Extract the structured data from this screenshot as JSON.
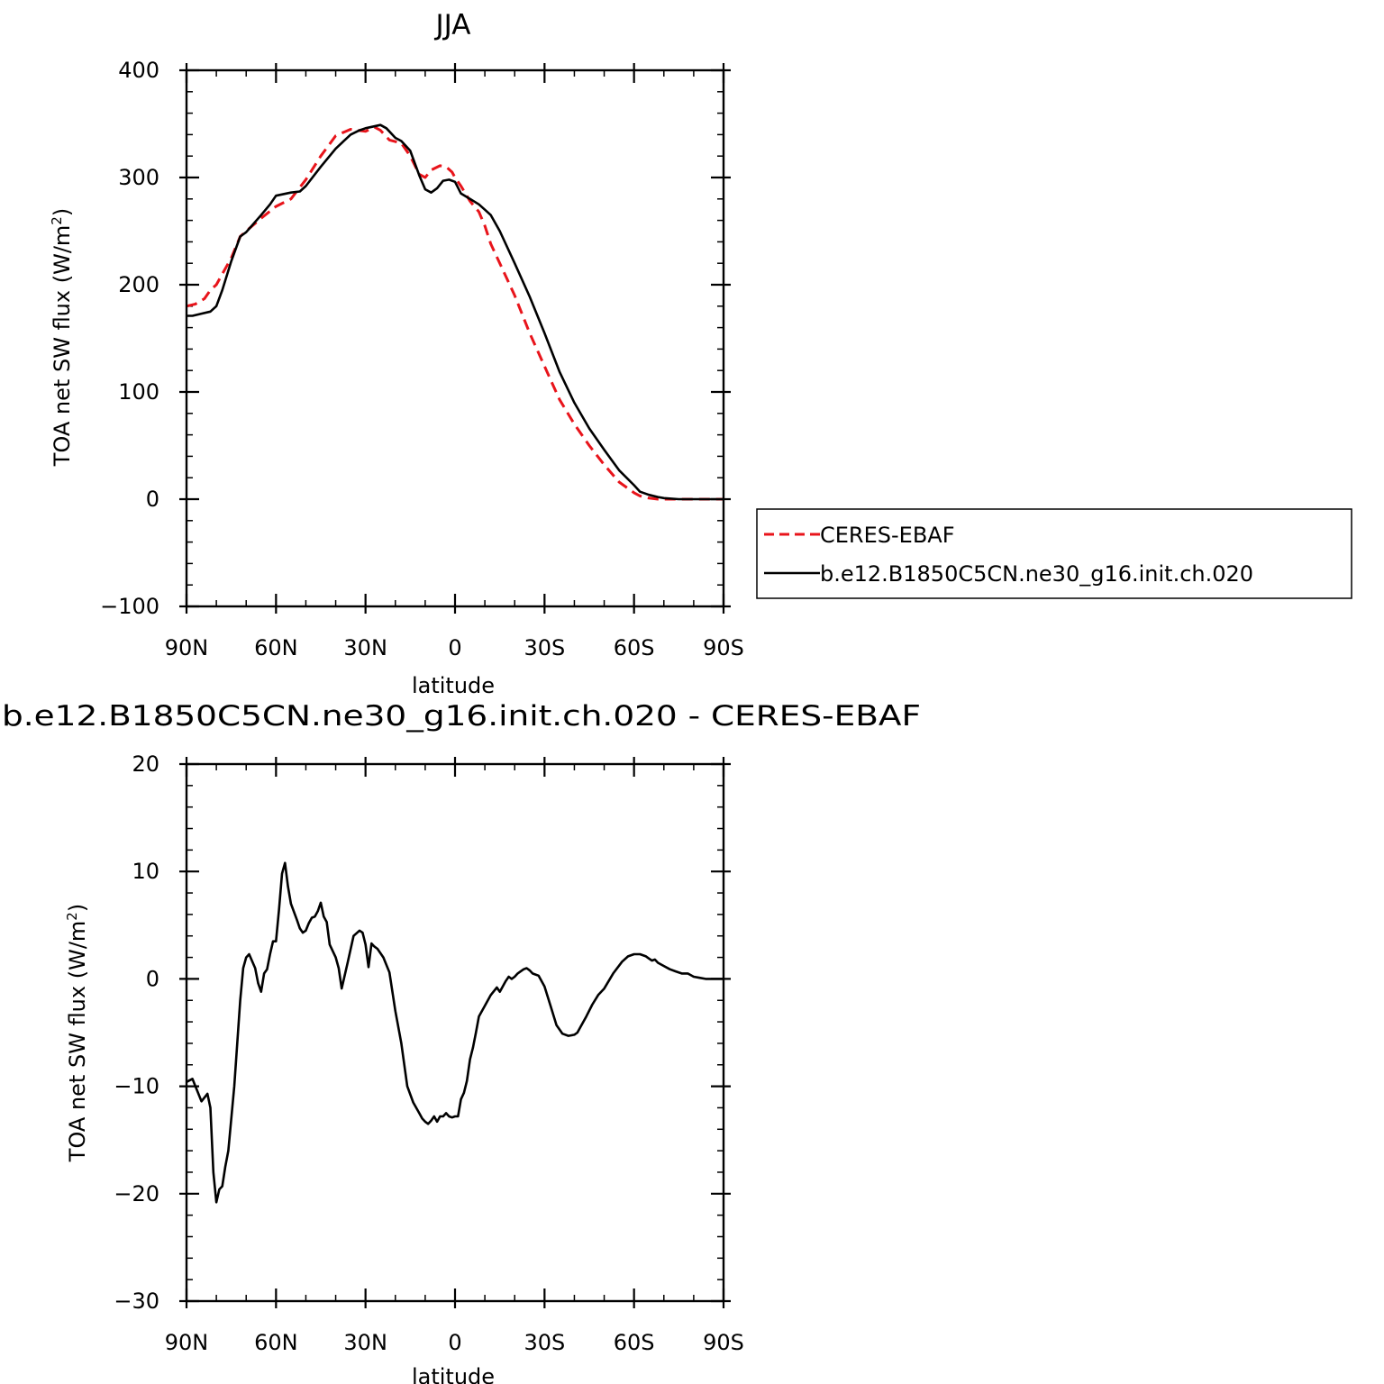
{
  "chart_data": [
    {
      "type": "line",
      "title": "JJA",
      "xlabel": "latitude",
      "ylabel": "TOA net SW flux (W/m",
      "ylabel_sup": "2",
      "ylabel_close": ")",
      "xlim": [
        90,
        -90
      ],
      "ylim": [
        -100,
        400
      ],
      "xticks": [
        {
          "value": 90,
          "label": "90N"
        },
        {
          "value": 60,
          "label": "60N"
        },
        {
          "value": 30,
          "label": "30N"
        },
        {
          "value": 0,
          "label": "0"
        },
        {
          "value": -30,
          "label": "30S"
        },
        {
          "value": -60,
          "label": "60S"
        },
        {
          "value": -90,
          "label": "90S"
        }
      ],
      "yticks": [
        -100,
        0,
        100,
        200,
        300,
        400
      ],
      "grid": false,
      "legend": "right",
      "series": [
        {
          "name": "CERES-EBAF",
          "color": "#e8141b",
          "dash": "dashed",
          "x": [
            90,
            87,
            84,
            82,
            80,
            78,
            75,
            72,
            70,
            65,
            60,
            55,
            50,
            45,
            40,
            35,
            30,
            27,
            25,
            22,
            18,
            15,
            12,
            10,
            8,
            5,
            3,
            1,
            0,
            -2,
            -5,
            -8,
            -10,
            -12,
            -15,
            -20,
            -25,
            -30,
            -35,
            -40,
            -45,
            -50,
            -55,
            -60,
            -62,
            -65,
            -68,
            -70,
            -75,
            -80,
            -85,
            -90
          ],
          "y": [
            180,
            182,
            187,
            195,
            200,
            210,
            225,
            245,
            250,
            262,
            273,
            280,
            298,
            320,
            339,
            345,
            343,
            347,
            344,
            335,
            332,
            320,
            303,
            300,
            307,
            311,
            310,
            305,
            300,
            292,
            278,
            268,
            255,
            238,
            220,
            190,
            155,
            124,
            93,
            70,
            50,
            32,
            16,
            6,
            3,
            1,
            0,
            0,
            0,
            0,
            0,
            0
          ]
        },
        {
          "name": "b.e12.B1850C5CN.ne30_g16.init.ch.020",
          "color": "#000000",
          "dash": "solid",
          "x": [
            90,
            88,
            85,
            82,
            80,
            78,
            75,
            72,
            70,
            65,
            62,
            60,
            55,
            52,
            50,
            45,
            40,
            35,
            32,
            30,
            25,
            23,
            20,
            18,
            15,
            12,
            10,
            8,
            6,
            4,
            2,
            0,
            -2,
            -5,
            -8,
            -10,
            -12,
            -15,
            -20,
            -25,
            -30,
            -35,
            -40,
            -45,
            -50,
            -55,
            -60,
            -62,
            -65,
            -68,
            -70,
            -75,
            -80,
            -85,
            -90
          ],
          "y": [
            171,
            171,
            173,
            175,
            180,
            195,
            222,
            245,
            249,
            265,
            275,
            283,
            286,
            287,
            292,
            310,
            327,
            340,
            344,
            346,
            349,
            346,
            337,
            334,
            325,
            302,
            289,
            286,
            290,
            297,
            298,
            296,
            285,
            280,
            275,
            270,
            265,
            250,
            220,
            189,
            155,
            119,
            90,
            66,
            46,
            27,
            13,
            7,
            4,
            2,
            1,
            0,
            0,
            0,
            0
          ]
        }
      ]
    },
    {
      "type": "line",
      "title": "b.e12.B1850C5CN.ne30_g16.init.ch.020 - CERES-EBAF",
      "xlabel": "latitude",
      "ylabel": "TOA net SW flux (W/m",
      "ylabel_sup": "2",
      "ylabel_close": ")",
      "xlim": [
        90,
        -90
      ],
      "ylim": [
        -30,
        20
      ],
      "xticks": [
        {
          "value": 90,
          "label": "90N"
        },
        {
          "value": 60,
          "label": "60N"
        },
        {
          "value": 30,
          "label": "30N"
        },
        {
          "value": 0,
          "label": "0"
        },
        {
          "value": -30,
          "label": "30S"
        },
        {
          "value": -60,
          "label": "60S"
        },
        {
          "value": -90,
          "label": "90S"
        }
      ],
      "yticks": [
        -30,
        -20,
        -10,
        0,
        10,
        20
      ],
      "grid": false,
      "series": [
        {
          "color": "#000000",
          "dash": "solid",
          "x": [
            90,
            88,
            87,
            85,
            83,
            82,
            81,
            80,
            79,
            78,
            77,
            76,
            74,
            72,
            71,
            70,
            69,
            67,
            66,
            65,
            64,
            63,
            62,
            61,
            60,
            59,
            58,
            57,
            56,
            55,
            53,
            52,
            51,
            50,
            49,
            48,
            47,
            46,
            45,
            44,
            43,
            42,
            40,
            39,
            38,
            36,
            34,
            32,
            31,
            30,
            29,
            28,
            27,
            26,
            24,
            22,
            20,
            18,
            16,
            14,
            12,
            11,
            10,
            9,
            8,
            7,
            6,
            5,
            4,
            3,
            2,
            1,
            0,
            -1,
            -2,
            -3,
            -4,
            -5,
            -6,
            -7,
            -8,
            -10,
            -12,
            -14,
            -15,
            -16,
            -17,
            -18,
            -19,
            -20,
            -21,
            -22,
            -23,
            -24,
            -25,
            -26,
            -27,
            -28,
            -30,
            -32,
            -34,
            -36,
            -38,
            -40,
            -41,
            -42,
            -44,
            -46,
            -48,
            -50,
            -53,
            -56,
            -58,
            -60,
            -62,
            -64,
            -65,
            -66,
            -67,
            -68,
            -70,
            -72,
            -74,
            -76,
            -78,
            -80,
            -82,
            -84,
            -86,
            -88,
            -90
          ],
          "y": [
            -9.6,
            -9.3,
            -10,
            -11.4,
            -10.7,
            -12,
            -18,
            -20.8,
            -19.6,
            -19.3,
            -17.5,
            -16,
            -10,
            -2,
            1,
            2,
            2.3,
            1,
            -0.4,
            -1.2,
            0.5,
            0.9,
            2.3,
            3.5,
            3.5,
            6.4,
            9.8,
            10.8,
            8.6,
            7,
            5.5,
            4.7,
            4.3,
            4.5,
            5.2,
            5.7,
            5.8,
            6.3,
            7.1,
            5.8,
            5.3,
            3.2,
            2,
            1,
            -0.9,
            1.5,
            4,
            4.5,
            4.3,
            3.2,
            1.1,
            3.3,
            3,
            2.8,
            2,
            0.6,
            -3,
            -6,
            -10,
            -11.5,
            -12.5,
            -13,
            -13.3,
            -13.5,
            -13.2,
            -12.8,
            -13.3,
            -12.8,
            -12.8,
            -12.5,
            -12.8,
            -12.9,
            -12.8,
            -12.8,
            -11.2,
            -10.6,
            -9.5,
            -7.5,
            -6.4,
            -5,
            -3.5,
            -2.5,
            -1.5,
            -0.8,
            -1.2,
            -0.7,
            -0.2,
            0.2,
            0,
            0.2,
            0.5,
            0.7,
            0.9,
            1,
            0.8,
            0.5,
            0.4,
            0.3,
            -0.7,
            -2.5,
            -4.3,
            -5.1,
            -5.3,
            -5.2,
            -5,
            -4.5,
            -3.5,
            -2.4,
            -1.5,
            -0.9,
            0.5,
            1.6,
            2.1,
            2.3,
            2.3,
            2.1,
            1.9,
            1.7,
            1.8,
            1.5,
            1.2,
            0.9,
            0.7,
            0.5,
            0.5,
            0.2,
            0.1,
            0,
            0,
            0,
            0
          ]
        }
      ]
    }
  ]
}
